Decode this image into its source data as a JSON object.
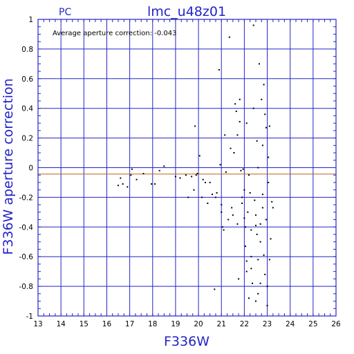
{
  "chart_data": {
    "type": "scatter",
    "title": "lmc_u48z01",
    "corner_label": "PC",
    "annotation": "Average aperture correction: -0.043",
    "xlabel": "F336W",
    "ylabel": "F336W aperture correction",
    "xlim": [
      13,
      26
    ],
    "ylim": [
      -1,
      1
    ],
    "x_ticks": [
      13,
      14,
      15,
      16,
      17,
      18,
      19,
      20,
      21,
      22,
      23,
      24,
      25,
      26
    ],
    "y_ticks": [
      -1,
      -0.8,
      -0.6,
      -0.4,
      -0.2,
      0,
      0.2,
      0.4,
      0.6,
      0.8,
      1
    ],
    "x_tick_labels": [
      "13",
      "14",
      "15",
      "16",
      "17",
      "18",
      "19",
      "20",
      "21",
      "22",
      "23",
      "24",
      "25",
      "26"
    ],
    "y_tick_labels": [
      "-1",
      "-0.8",
      "-0.6",
      "-0.4",
      "-0.2",
      "0",
      "0.2",
      "0.4",
      "0.6",
      "0.8",
      "1"
    ],
    "grid": true,
    "reference_line": {
      "y": -0.043,
      "color": "#b5651d"
    },
    "axis_color": "#2323c8",
    "point_color": "#000000",
    "points": [
      [
        16.5,
        -0.12
      ],
      [
        16.6,
        -0.07
      ],
      [
        16.7,
        -0.11
      ],
      [
        16.9,
        -0.13
      ],
      [
        17.05,
        -0.05
      ],
      [
        17.1,
        -0.01
      ],
      [
        17.3,
        -0.08
      ],
      [
        17.6,
        -0.04
      ],
      [
        17.95,
        -0.11
      ],
      [
        18.1,
        -0.11
      ],
      [
        18.3,
        -0.02
      ],
      [
        18.5,
        0.01
      ],
      [
        19.0,
        -0.06
      ],
      [
        19.2,
        -0.07
      ],
      [
        19.45,
        -0.05
      ],
      [
        19.55,
        -0.2
      ],
      [
        19.7,
        -0.06
      ],
      [
        19.8,
        -0.15
      ],
      [
        19.85,
        0.28
      ],
      [
        19.9,
        -0.05
      ],
      [
        19.95,
        -0.04
      ],
      [
        20.05,
        0.08
      ],
      [
        20.15,
        -0.2
      ],
      [
        20.2,
        -0.08
      ],
      [
        20.3,
        -0.1
      ],
      [
        20.4,
        -0.24
      ],
      [
        20.5,
        -0.1
      ],
      [
        20.6,
        -0.18
      ],
      [
        20.7,
        -0.82
      ],
      [
        20.75,
        -0.2
      ],
      [
        20.8,
        -0.17
      ],
      [
        20.9,
        0.66
      ],
      [
        20.95,
        0.02
      ],
      [
        21.0,
        -0.25
      ],
      [
        21.0,
        -0.3
      ],
      [
        21.05,
        -0.4
      ],
      [
        21.1,
        -0.42
      ],
      [
        21.15,
        0.22
      ],
      [
        21.2,
        -0.03
      ],
      [
        21.3,
        -0.35
      ],
      [
        21.35,
        0.88
      ],
      [
        21.4,
        0.13
      ],
      [
        21.45,
        -0.27
      ],
      [
        21.5,
        -0.32
      ],
      [
        21.55,
        0.1
      ],
      [
        21.6,
        0.43
      ],
      [
        21.65,
        0.38
      ],
      [
        21.7,
        -0.38
      ],
      [
        21.7,
        0.22
      ],
      [
        21.75,
        -0.75
      ],
      [
        21.8,
        0.31
      ],
      [
        21.8,
        0.46
      ],
      [
        21.85,
        -0.02
      ],
      [
        21.9,
        -0.24
      ],
      [
        21.95,
        -0.01
      ],
      [
        22.0,
        -0.15
      ],
      [
        22.0,
        -0.34
      ],
      [
        22.05,
        -0.4
      ],
      [
        22.05,
        -0.53
      ],
      [
        22.1,
        -0.63
      ],
      [
        22.1,
        -0.7
      ],
      [
        22.15,
        -0.3
      ],
      [
        22.2,
        -0.05
      ],
      [
        22.25,
        -0.17
      ],
      [
        22.3,
        -0.6
      ],
      [
        22.3,
        -0.68
      ],
      [
        22.35,
        -0.78
      ],
      [
        22.4,
        0.96
      ],
      [
        22.45,
        -0.22
      ],
      [
        22.5,
        -0.32
      ],
      [
        22.5,
        -0.39
      ],
      [
        22.55,
        -0.45
      ],
      [
        22.55,
        0.18
      ],
      [
        22.6,
        -0.62
      ],
      [
        22.6,
        -0.85
      ],
      [
        22.65,
        0.7
      ],
      [
        22.7,
        -0.38
      ],
      [
        22.7,
        -0.5
      ],
      [
        22.75,
        0.46
      ],
      [
        22.8,
        -0.27
      ],
      [
        22.8,
        0.15
      ],
      [
        22.85,
        -0.59
      ],
      [
        22.85,
        0.56
      ],
      [
        22.9,
        -0.72
      ],
      [
        22.9,
        0.36
      ],
      [
        22.95,
        -0.35
      ],
      [
        22.95,
        0.27
      ],
      [
        23.0,
        -0.8
      ],
      [
        23.0,
        -0.93
      ],
      [
        23.05,
        0.07
      ],
      [
        23.05,
        -0.1
      ],
      [
        23.1,
        -0.62
      ],
      [
        23.1,
        0.28
      ],
      [
        23.15,
        -0.48
      ],
      [
        23.2,
        -0.23
      ],
      [
        23.25,
        -0.27
      ],
      [
        22.2,
        -0.88
      ],
      [
        22.5,
        -0.9
      ],
      [
        22.7,
        -0.78
      ],
      [
        22.3,
        -0.42
      ],
      [
        22.4,
        0.4
      ],
      [
        21.9,
        -0.2
      ],
      [
        22.1,
        0.3
      ],
      [
        22.6,
        0.0
      ],
      [
        22.8,
        -0.18
      ]
    ]
  }
}
